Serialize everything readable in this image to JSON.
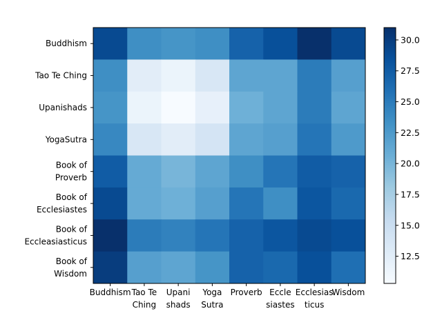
{
  "chart_data": {
    "type": "heatmap",
    "title": "",
    "xlabel": "",
    "ylabel": "",
    "x_tick_labels": [
      [
        "Buddhism"
      ],
      [
        "Tao Te",
        "Ching"
      ],
      [
        "Upani",
        "shads"
      ],
      [
        "Yoga",
        "Sutra"
      ],
      [
        "Proverb"
      ],
      [
        "Eccle",
        "siastes"
      ],
      [
        "Ecclesias",
        "ticus"
      ],
      [
        "Wisdom"
      ]
    ],
    "y_tick_labels": [
      [
        "Buddhism"
      ],
      [
        "Tao Te Ching"
      ],
      [
        "Upanishads"
      ],
      [
        "YogaSutra"
      ],
      [
        "Book of",
        "Proverb"
      ],
      [
        "Book of",
        "Ecclesiastes"
      ],
      [
        "Book of",
        "Eccleasiasticus"
      ],
      [
        "Book of",
        "Wisdom"
      ]
    ],
    "values": [
      [
        29.0,
        23.5,
        23.0,
        23.5,
        27.0,
        28.5,
        31.0,
        29.0
      ],
      [
        23.5,
        12.5,
        11.5,
        13.5,
        21.5,
        21.5,
        25.0,
        22.0
      ],
      [
        23.0,
        11.5,
        10.3,
        12.0,
        20.5,
        21.5,
        25.0,
        21.5
      ],
      [
        24.0,
        13.5,
        12.5,
        14.0,
        21.5,
        22.0,
        25.5,
        22.5
      ],
      [
        27.5,
        21.0,
        20.0,
        21.5,
        23.5,
        25.5,
        27.5,
        27.0
      ],
      [
        29.0,
        21.0,
        20.5,
        22.0,
        25.5,
        23.5,
        28.0,
        26.5
      ],
      [
        31.0,
        25.0,
        24.5,
        25.5,
        27.0,
        28.0,
        29.0,
        28.5
      ],
      [
        30.0,
        22.0,
        21.5,
        23.0,
        27.0,
        26.5,
        28.5,
        26.0
      ]
    ],
    "colorbar": {
      "min": 10.3,
      "max": 31.0,
      "ticks": [
        12.5,
        15.0,
        17.5,
        20.0,
        22.5,
        25.0,
        27.5,
        30.0
      ],
      "tick_labels": [
        "12.5",
        "15.0",
        "17.5",
        "20.0",
        "22.5",
        "25.0",
        "27.5",
        "30.0"
      ],
      "colormap": "Blues",
      "colormap_stops": [
        "#f7fbff",
        "#deebf7",
        "#c6dbef",
        "#9ecae1",
        "#6baed6",
        "#4292c6",
        "#2171b5",
        "#08519c",
        "#08306b"
      ]
    },
    "grid": false
  }
}
